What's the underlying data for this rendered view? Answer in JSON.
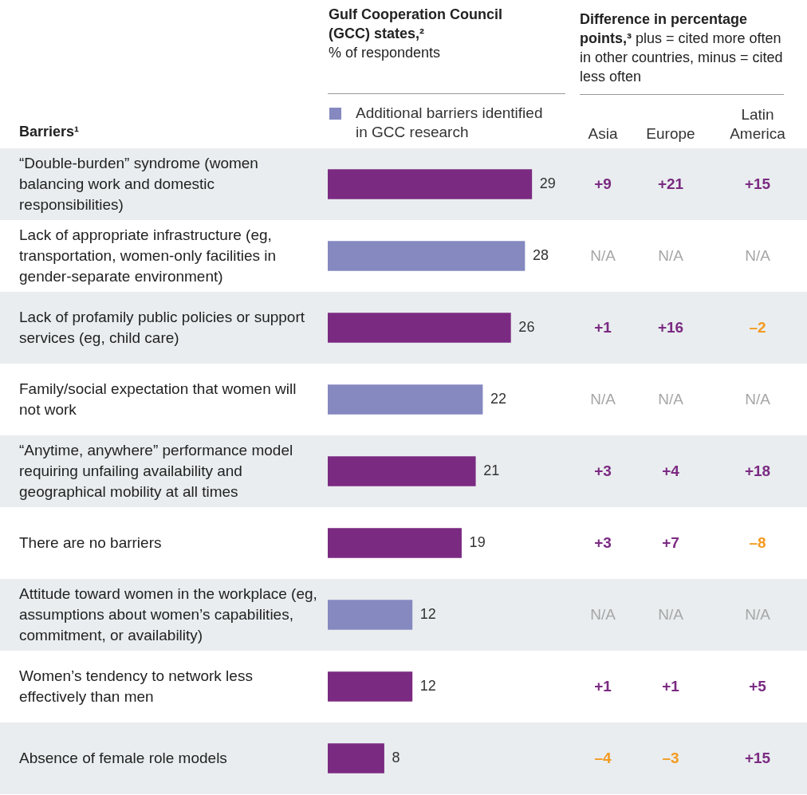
{
  "chart_data": [
    {
      "type": "bar",
      "orientation": "horizontal",
      "stacked": true,
      "title": "Gulf Cooperation Council (GCC) states,²",
      "subtitle": "% of respondents",
      "ylabel": "Barriers¹",
      "legend": "top right",
      "data_labels": true,
      "categories": [
        "“Double-burden” syndrome (women balancing work and domestic responsibilities)",
        "Lack of appropriate infrastructure (eg, transportation, women-only facilities in gender-separate environment)",
        "Lack of profamily public policies or support services (eg, child care)",
        "Family/social expectation that women will not work",
        "“Anytime, anywhere” performance model requiring unfailing availability and geographical mobility at all times",
        "There are no barriers",
        "Attitude toward women in the workplace (eg, assumptions about women’s capabilities, commitment, or availability)",
        "Women’s tendency to network less effectively than men",
        "Absence of female role models"
      ],
      "series": [
        {
          "color": "#7b2a82",
          "values": [
            29,
            null,
            26,
            null,
            21,
            19,
            null,
            12,
            8
          ]
        },
        {
          "name": "Additional barriers identified in GCC research",
          "color": "#8589c0",
          "values": [
            null,
            28,
            null,
            22,
            null,
            null,
            12,
            null,
            null
          ]
        }
      ]
    },
    {
      "type": "other",
      "title": "Difference in percentage points,³",
      "subtitle": "plus = cited more often in other countries, minus = cited less often",
      "categories": [
        "Asia",
        "Europe",
        "Latin America"
      ],
      "colors": [
        [
          "#7b2a82",
          "#7b2a82",
          "#7b2a82"
        ],
        [
          "#a6a6a6",
          "#a6a6a6",
          "#a6a6a6"
        ],
        [
          "#7b2a82",
          "#7b2a82",
          "#f39a1f"
        ],
        [
          "#a6a6a6",
          "#a6a6a6",
          "#a6a6a6"
        ],
        [
          "#7b2a82",
          "#7b2a82",
          "#7b2a82"
        ],
        [
          "#7b2a82",
          "#7b2a82",
          "#f39a1f"
        ],
        [
          "#a6a6a6",
          "#a6a6a6",
          "#a6a6a6"
        ],
        [
          "#7b2a82",
          "#7b2a82",
          "#7b2a82"
        ],
        [
          "#f39a1f",
          "#f39a1f",
          "#7b2a82"
        ]
      ],
      "cell_labels": [
        [
          "+9",
          "+21",
          "+15"
        ],
        [
          "N/A",
          "N/A",
          "N/A"
        ],
        [
          "+1",
          "+16",
          "–2"
        ],
        [
          "N/A",
          "N/A",
          "N/A"
        ],
        [
          "+3",
          "+4",
          "+18"
        ],
        [
          "+3",
          "+7",
          "–8"
        ],
        [
          "N/A",
          "N/A",
          "N/A"
        ],
        [
          "+1",
          "+1",
          "+5"
        ],
        [
          "–4",
          "–3",
          "+15"
        ]
      ]
    }
  ]
}
